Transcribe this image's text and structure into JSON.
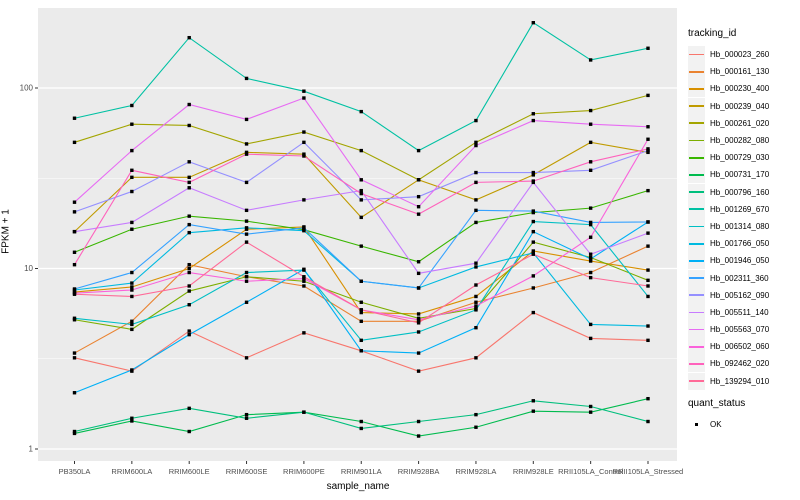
{
  "chart_data": {
    "type": "line",
    "title": "",
    "xlabel": "sample_name",
    "ylabel": "FPKM + 1",
    "y_scale": "log10",
    "y_ticks": [
      {
        "label": "1",
        "value": 1
      },
      {
        "label": "10",
        "value": 10
      },
      {
        "label": "100",
        "value": 100
      }
    ],
    "y_minor_ticks": [
      3.1623,
      31.623
    ],
    "ylim": [
      0.86,
      280
    ],
    "grid": true,
    "panel_bg": "#EBEBEB",
    "grid_color": "#FFFFFF",
    "axis_text_color": "#4D4D4D",
    "marker_color": "#000000",
    "categories": [
      "PB350LA",
      "RRIM600LA",
      "RRIM600LE",
      "RRIM600SE",
      "RRIM600PE",
      "RRIM901LA",
      "RRIM928BA",
      "RRIM928LA",
      "RRIM928LE",
      "RRII105LA_Control",
      "RRII105LA_Stressed"
    ],
    "series": [
      {
        "name": "Hb_000023_260",
        "color": "#F8766D",
        "values": [
          3.2,
          2.7,
          4.5,
          3.2,
          4.4,
          3.5,
          2.7,
          3.2,
          5.7,
          4.1,
          4.0
        ]
      },
      {
        "name": "Hb_000161_130",
        "color": "#EA8331",
        "values": [
          3.4,
          5.1,
          10.5,
          9.0,
          8.0,
          5.1,
          5.1,
          6.5,
          7.8,
          9.5,
          13.3
        ]
      },
      {
        "name": "Hb_000230_400",
        "color": "#D89000",
        "values": [
          7.4,
          7.9,
          10.0,
          16.5,
          17.0,
          5.7,
          5.6,
          7.0,
          12.5,
          11.0,
          9.8
        ]
      },
      {
        "name": "Hb_000239_040",
        "color": "#C09B00",
        "values": [
          16.0,
          32.0,
          32.0,
          44.0,
          43.0,
          19.2,
          31.0,
          24.0,
          33.0,
          50.0,
          44.0
        ]
      },
      {
        "name": "Hb_000261_020",
        "color": "#A3A500",
        "values": [
          50,
          63,
          62,
          49,
          57,
          45,
          31,
          50,
          72,
          75,
          91
        ]
      },
      {
        "name": "Hb_000282_080",
        "color": "#7CAE00",
        "values": [
          5.2,
          4.6,
          7.5,
          9.0,
          8.5,
          6.5,
          5.3,
          6.0,
          14.0,
          11.5,
          8.6
        ]
      },
      {
        "name": "Hb_000729_030",
        "color": "#39B600",
        "values": [
          12.3,
          16.5,
          19.5,
          18.3,
          16.4,
          13.3,
          10.9,
          18.0,
          20.4,
          21.6,
          27.0
        ]
      },
      {
        "name": "Hb_000731_170",
        "color": "#00BB4E",
        "values": [
          1.22,
          1.43,
          1.25,
          1.55,
          1.6,
          1.42,
          1.18,
          1.32,
          1.62,
          1.6,
          1.9
        ]
      },
      {
        "name": "Hb_000796_160",
        "color": "#00BF7D",
        "values": [
          1.25,
          1.48,
          1.68,
          1.48,
          1.6,
          1.3,
          1.42,
          1.55,
          1.85,
          1.72,
          1.42
        ]
      },
      {
        "name": "Hb_001269_670",
        "color": "#00C1A3",
        "values": [
          68,
          80,
          190,
          113,
          96,
          74,
          45,
          66,
          230,
          143,
          166
        ]
      },
      {
        "name": "Hb_001314_080",
        "color": "#00BFC4",
        "values": [
          5.3,
          4.9,
          6.3,
          9.5,
          9.8,
          4.0,
          4.45,
          5.9,
          18.2,
          17.5,
          7.0
        ]
      },
      {
        "name": "Hb_001766_050",
        "color": "#00BAE0",
        "values": [
          7.6,
          8.3,
          15.8,
          16.8,
          16.2,
          8.5,
          7.8,
          10.2,
          12.2,
          4.9,
          4.8
        ]
      },
      {
        "name": "Hb_001946_050",
        "color": "#00B0F6",
        "values": [
          2.05,
          2.74,
          4.3,
          6.5,
          9.9,
          3.5,
          3.4,
          4.7,
          16.0,
          11.3,
          18.1
        ]
      },
      {
        "name": "Hb_002311_360",
        "color": "#35A2FF",
        "values": [
          7.7,
          9.5,
          17.5,
          15.5,
          16.8,
          8.5,
          7.8,
          21.0,
          20.8,
          18.0,
          18.1
        ]
      },
      {
        "name": "Hb_005162_090",
        "color": "#9590FF",
        "values": [
          20.6,
          26.7,
          39.0,
          30.0,
          50.0,
          24.0,
          25.0,
          34.0,
          34.0,
          35.0,
          45.0
        ]
      },
      {
        "name": "Hb_005511_140",
        "color": "#C77CFF",
        "values": [
          16.0,
          18.0,
          28.0,
          21.0,
          24.0,
          27.0,
          9.4,
          10.7,
          30.0,
          12.0,
          15.7
        ]
      },
      {
        "name": "Hb_005563_070",
        "color": "#E76BF3",
        "values": [
          23.3,
          45.0,
          81.0,
          67.0,
          88.0,
          31.0,
          22.0,
          48.0,
          66.0,
          63.0,
          61.0
        ]
      },
      {
        "name": "Hb_006502_060",
        "color": "#FA62DB",
        "values": [
          7.3,
          7.6,
          9.5,
          8.5,
          8.8,
          5.9,
          5.2,
          6.2,
          9.1,
          14.9,
          52.0
        ]
      },
      {
        "name": "Hb_092462_020",
        "color": "#FF62BC",
        "values": [
          10.5,
          35.0,
          30.0,
          43.0,
          42.0,
          26.0,
          20.0,
          30.0,
          30.5,
          39.0,
          46.0
        ]
      },
      {
        "name": "Hb_139294_010",
        "color": "#FF6A98",
        "values": [
          7.2,
          7.0,
          8.0,
          14.0,
          9.0,
          5.9,
          5.0,
          8.1,
          12.0,
          8.9,
          8.0
        ]
      }
    ],
    "legend": {
      "title": "tracking_id",
      "position": "right"
    },
    "legend2": {
      "title": "quant_status",
      "items": [
        "OK"
      ],
      "marker": "black-square"
    }
  }
}
